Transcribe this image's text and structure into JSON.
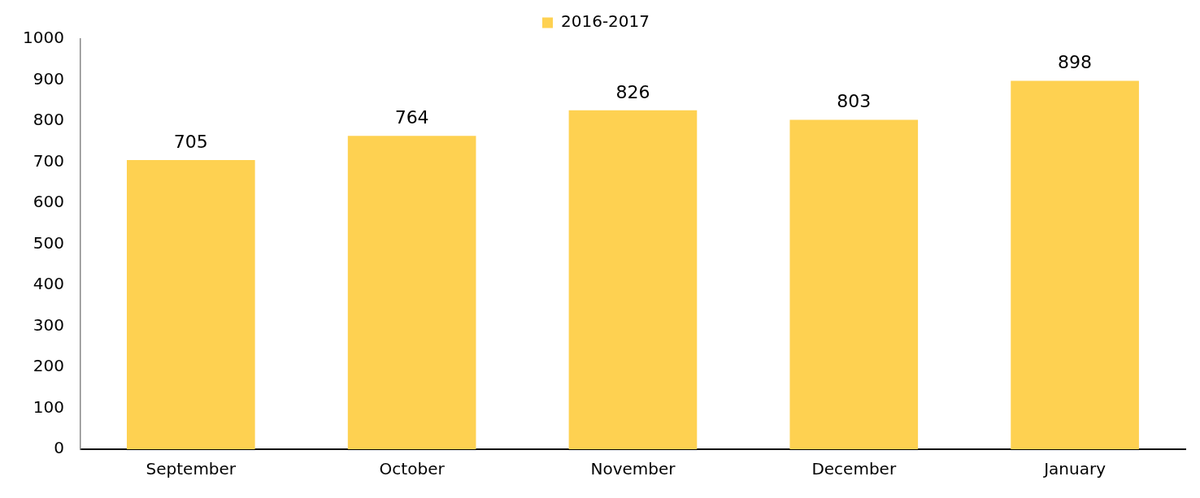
{
  "chart_data": {
    "type": "bar",
    "categories": [
      "September",
      "October",
      "November",
      "December",
      "January"
    ],
    "series": [
      {
        "name": "2016-2017",
        "color": "#fed151",
        "values": [
          705,
          764,
          826,
          803,
          898
        ]
      }
    ],
    "ylim": [
      0,
      1000
    ],
    "yticks": [
      0,
      100,
      200,
      300,
      400,
      500,
      600,
      700,
      800,
      900,
      1000
    ],
    "grid": false,
    "legend": "top",
    "data_labels": true
  }
}
